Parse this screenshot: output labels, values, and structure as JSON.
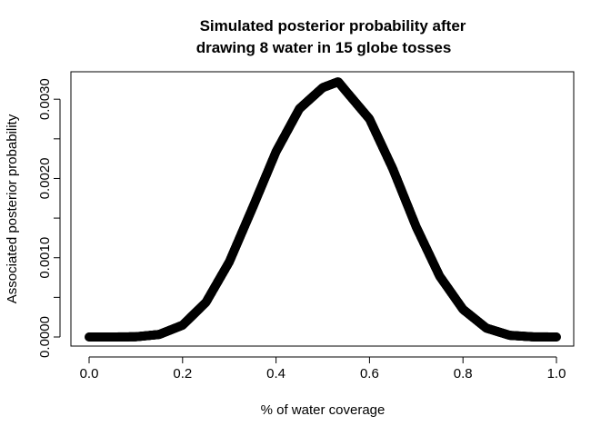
{
  "chart_data": {
    "type": "line",
    "title_lines": [
      "Simulated posterior probability after",
      "drawing 8 water in 15 globe tosses"
    ],
    "xlabel": "% of water coverage",
    "ylabel": "Associated posterior probability",
    "xlim": [
      0.0,
      1.0
    ],
    "ylim": [
      0.0,
      0.00325
    ],
    "x_ticks": [
      0.0,
      0.2,
      0.4,
      0.6,
      0.8,
      1.0
    ],
    "x_tick_labels": [
      "0.0",
      "0.2",
      "0.4",
      "0.6",
      "0.8",
      "1.0"
    ],
    "y_ticks": [
      0.0,
      0.0005,
      0.001,
      0.0015,
      0.002,
      0.0025,
      0.003
    ],
    "y_tick_labels": [
      "0.0000",
      "",
      "0.0010",
      "",
      "0.0020",
      "",
      "0.0030"
    ],
    "grid": false,
    "legend": "none",
    "series_color": "#000000",
    "series": [
      {
        "x": [
          0.0,
          0.05,
          0.1,
          0.15,
          0.2,
          0.25,
          0.3,
          0.35,
          0.4,
          0.45,
          0.5,
          0.533,
          0.55,
          0.6,
          0.65,
          0.7,
          0.75,
          0.8,
          0.85,
          0.9,
          0.95,
          1.0
        ],
        "values": [
          0.0,
          0.0,
          3e-06,
          3.2e-05,
          0.000149,
          0.000437,
          0.000948,
          0.001633,
          0.002338,
          0.00288,
          0.003146,
          0.00322,
          0.003099,
          0.00275,
          0.00212,
          0.001388,
          0.000768,
          0.000349,
          0.000112,
          2.1e-05,
          2e-06,
          0.0
        ]
      }
    ]
  }
}
